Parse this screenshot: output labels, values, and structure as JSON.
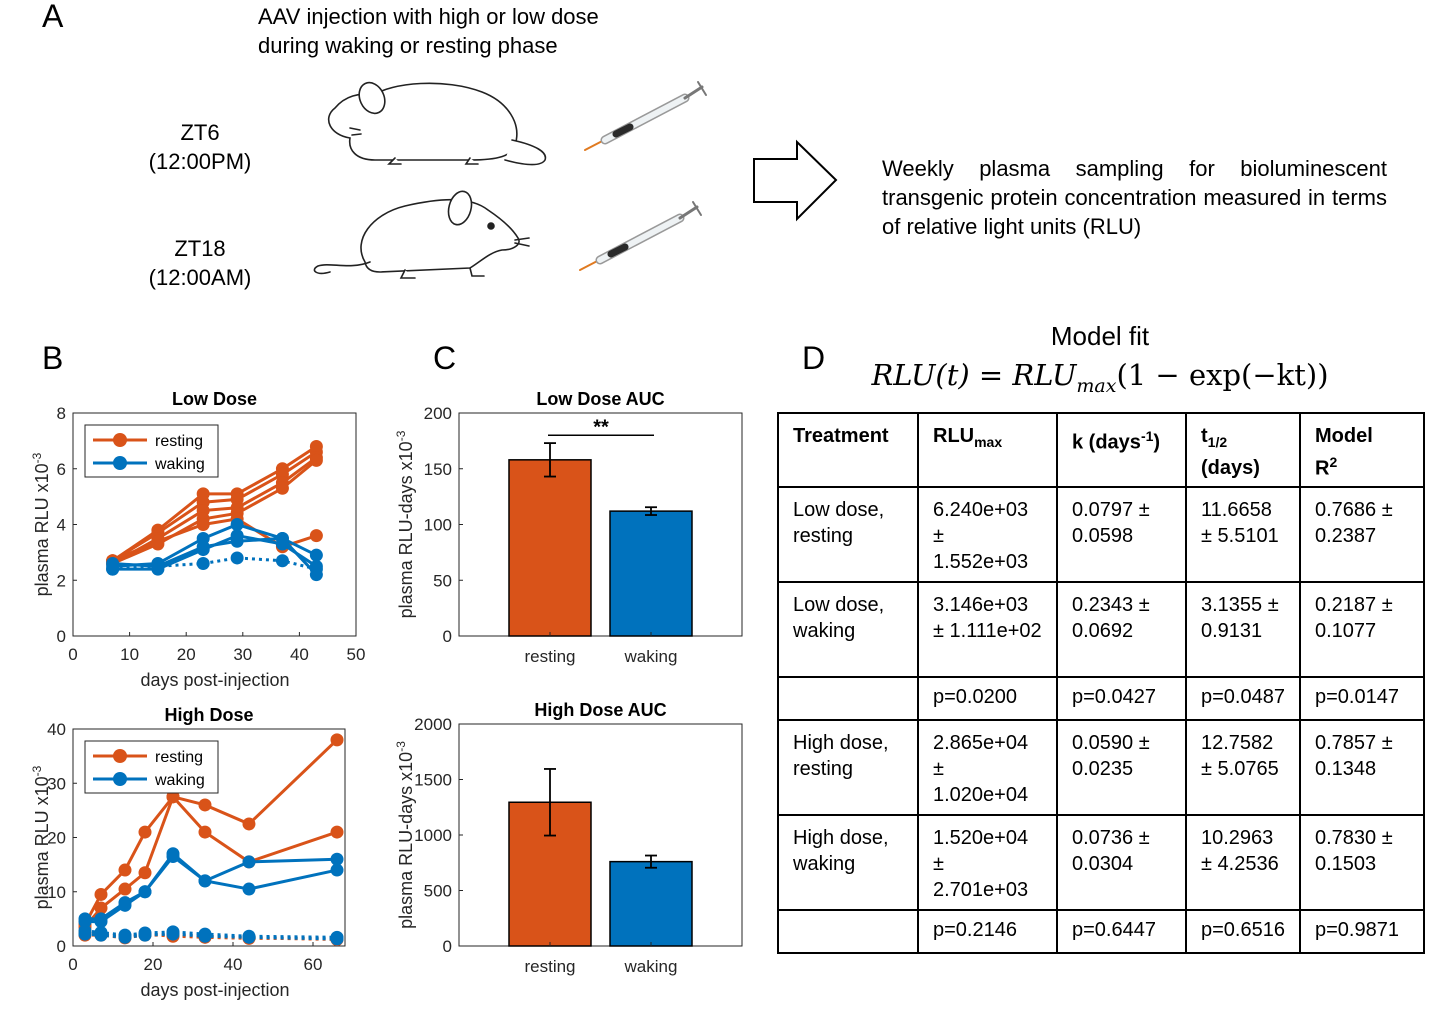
{
  "panel_labels": {
    "a": "A",
    "b": "B",
    "c": "C",
    "d": "D"
  },
  "panel_a": {
    "caption_line1": "AAV injection with high or low dose",
    "caption_line2": "during waking or resting phase",
    "zt6": "ZT6",
    "zt6_time": "(12:00PM)",
    "zt18": "ZT18",
    "zt18_time": "(12:00AM)",
    "weekly_text": "Weekly plasma sampling for bioluminescent transgenic protein concentration measured in terms of relative light units (RLU)",
    "icons": [
      "sleeping-mouse-icon",
      "awake-mouse-icon",
      "syringe-icon",
      "arrow-right-icon"
    ]
  },
  "colors": {
    "resting": "#D95319",
    "waking": "#0072BD",
    "axis": "#262626"
  },
  "model": {
    "title": "Model fit",
    "eq_lhs": "RLU(t) = RLU",
    "eq_sub": "max",
    "eq_rest": "(1 − exp(−kt))"
  },
  "table": {
    "headers": {
      "treatment": "Treatment",
      "rlu": "RLU",
      "rlu_sub": "max",
      "k": "k (days",
      "k_sup": "-1",
      "k_close": ")",
      "t": "t",
      "t_sub": "1/2",
      "t_days": "(days)",
      "model": "Model",
      "r": "R",
      "r_sup": "2"
    },
    "rows": [
      {
        "treatment": "Low dose, resting",
        "rlu": "6.240e+03 ± 1.552e+03",
        "k": "0.0797 ± 0.0598",
        "t": "11.6658 ± 5.5101",
        "r2": "0.7686 ± 0.2387"
      },
      {
        "treatment": "Low dose, waking",
        "rlu": "3.146e+03 ± 1.111e+02",
        "k": "0.2343 ± 0.0692",
        "t": "3.1355 ± 0.9131",
        "r2": "0.2187 ± 0.1077"
      },
      {
        "treatment": "",
        "rlu": "p=0.0200",
        "k": "p=0.0427",
        "t": "p=0.0487",
        "r2": "p=0.0147"
      },
      {
        "treatment": "High dose, resting",
        "rlu": "2.865e+04 ± 1.020e+04",
        "k": "0.0590 ± 0.0235",
        "t": "12.7582 ± 5.0765",
        "r2": "0.7857 ± 0.1348"
      },
      {
        "treatment": "High dose, waking",
        "rlu": "1.520e+04 ± 2.701e+03",
        "k": "0.0736 ± 0.0304",
        "t": "10.2963 ± 4.2536",
        "r2": "0.7830 ± 0.1503"
      },
      {
        "treatment": "",
        "rlu": "p=0.2146",
        "k": "p=0.6447",
        "t": "p=0.6516",
        "r2": "p=0.9871"
      }
    ]
  },
  "chart_data": [
    {
      "id": "b_low",
      "type": "line",
      "title": "Low Dose",
      "xlabel": "days post-injection",
      "ylabel": "plasma RLU x10",
      "ylabel_exp": "-3",
      "xlim": [
        0,
        50
      ],
      "ylim": [
        0,
        8
      ],
      "xticks": [
        0,
        10,
        20,
        30,
        40,
        50
      ],
      "yticks": [
        0,
        2,
        4,
        6,
        8
      ],
      "legend": [
        "resting",
        "waking"
      ],
      "legend_position": "top-left",
      "series": [
        {
          "name": "resting",
          "group": "resting",
          "dashed": false,
          "x": [
            7,
            15,
            23,
            29,
            37,
            43
          ],
          "y": [
            2.7,
            3.8,
            5.1,
            5.1,
            6.0,
            6.8
          ]
        },
        {
          "name": "resting",
          "group": "resting",
          "dashed": false,
          "x": [
            7,
            15,
            23,
            29,
            37,
            43
          ],
          "y": [
            2.7,
            3.7,
            4.8,
            4.9,
            5.8,
            6.6
          ]
        },
        {
          "name": "resting",
          "group": "resting",
          "dashed": false,
          "x": [
            7,
            15,
            23,
            29,
            37,
            43
          ],
          "y": [
            2.6,
            3.5,
            4.5,
            4.6,
            5.5,
            6.4
          ]
        },
        {
          "name": "resting",
          "group": "resting",
          "dashed": false,
          "x": [
            7,
            15,
            23,
            29,
            37,
            43
          ],
          "y": [
            2.6,
            3.3,
            4.2,
            4.4,
            5.3,
            6.3
          ]
        },
        {
          "name": "resting",
          "group": "resting",
          "dashed": false,
          "x": [
            7,
            15,
            23,
            29,
            37,
            43
          ],
          "y": [
            2.7,
            3.4,
            4.0,
            4.2,
            3.2,
            3.6
          ]
        },
        {
          "name": "waking",
          "group": "waking",
          "dashed": false,
          "x": [
            7,
            15,
            23,
            29,
            37,
            43
          ],
          "y": [
            2.5,
            2.6,
            3.5,
            4.0,
            3.5,
            2.9
          ]
        },
        {
          "name": "waking",
          "group": "waking",
          "dashed": false,
          "x": [
            7,
            15,
            23,
            29,
            37,
            43
          ],
          "y": [
            2.4,
            2.4,
            3.1,
            3.6,
            3.3,
            2.5
          ]
        },
        {
          "name": "waking",
          "group": "waking",
          "dashed": false,
          "x": [
            7,
            15,
            23,
            29,
            37,
            43
          ],
          "y": [
            2.6,
            2.5,
            3.2,
            3.4,
            3.5,
            2.2
          ]
        },
        {
          "name": "waking",
          "group": "waking",
          "dashed": true,
          "x": [
            7,
            15,
            23,
            29,
            37,
            43
          ],
          "y": [
            2.4,
            2.5,
            2.6,
            2.8,
            2.7,
            2.4
          ]
        }
      ]
    },
    {
      "id": "b_high",
      "type": "line",
      "title": "High Dose",
      "xlabel": "days post-injection",
      "ylabel": "plasma RLU x10",
      "ylabel_exp": "-3",
      "xlim": [
        0,
        70
      ],
      "ylim": [
        0,
        40
      ],
      "xticks": [
        0,
        20,
        40,
        60
      ],
      "yticks": [
        0,
        10,
        20,
        30,
        40
      ],
      "legend": [
        "resting",
        "waking"
      ],
      "legend_position": "top-left",
      "series": [
        {
          "name": "resting",
          "group": "resting",
          "dashed": false,
          "x": [
            3,
            7,
            13,
            18,
            25,
            33,
            44,
            66
          ],
          "y": [
            4,
            9.5,
            14,
            21,
            27.5,
            26,
            22.5,
            38
          ]
        },
        {
          "name": "resting",
          "group": "resting",
          "dashed": false,
          "x": [
            3,
            7,
            13,
            18,
            25,
            33,
            44,
            66
          ],
          "y": [
            3.5,
            7,
            10.5,
            13.5,
            27.5,
            21,
            15.5,
            21
          ]
        },
        {
          "name": "waking",
          "group": "waking",
          "dashed": false,
          "x": [
            3,
            7,
            13,
            18,
            25,
            33,
            44,
            66
          ],
          "y": [
            5,
            5,
            8,
            10,
            17,
            12,
            15.5,
            16
          ]
        },
        {
          "name": "waking",
          "group": "waking",
          "dashed": false,
          "x": [
            3,
            7,
            13,
            18,
            25,
            33,
            44,
            66
          ],
          "y": [
            4.5,
            4.5,
            7.5,
            10,
            16.5,
            12,
            10.5,
            14
          ]
        },
        {
          "name": "resting",
          "group": "resting",
          "dashed": true,
          "x": [
            3,
            7,
            13,
            18,
            25,
            33,
            44,
            66
          ],
          "y": [
            2,
            2,
            1.5,
            2,
            2,
            1.8,
            1.5,
            1.2
          ]
        },
        {
          "name": "resting",
          "group": "resting",
          "dashed": true,
          "x": [
            3,
            7,
            13,
            18,
            25,
            33,
            44,
            66
          ],
          "y": [
            2.5,
            2.2,
            1.8,
            2.2,
            1.8,
            1.6,
            1.4,
            1.5
          ]
        },
        {
          "name": "waking",
          "group": "waking",
          "dashed": true,
          "x": [
            3,
            7,
            13,
            18,
            25,
            33,
            44,
            66
          ],
          "y": [
            2.8,
            2.5,
            2,
            2.4,
            2.6,
            2.2,
            1.8,
            1.6
          ]
        },
        {
          "name": "waking",
          "group": "waking",
          "dashed": true,
          "x": [
            3,
            7,
            13,
            18,
            25,
            33,
            44,
            66
          ],
          "y": [
            2.2,
            2,
            1.6,
            2.0,
            2.2,
            1.8,
            1.6,
            1.3
          ]
        }
      ]
    },
    {
      "id": "c_low",
      "type": "bar",
      "title": "Low Dose AUC",
      "ylabel": "plasma RLU-days x10",
      "ylabel_exp": "-3",
      "categories": [
        "resting",
        "waking"
      ],
      "values": [
        158,
        112
      ],
      "errors": [
        15,
        3.5
      ],
      "ylim": [
        0,
        200
      ],
      "yticks": [
        0,
        50,
        100,
        150,
        200
      ],
      "significance": "**"
    },
    {
      "id": "c_high",
      "type": "bar",
      "title": "High Dose AUC",
      "ylabel": "plasma RLU-days x10",
      "ylabel_exp": "-3",
      "categories": [
        "resting",
        "waking"
      ],
      "values": [
        1295,
        760
      ],
      "errors": [
        300,
        55
      ],
      "ylim": [
        0,
        2000
      ],
      "yticks": [
        0,
        500,
        1000,
        1500,
        2000
      ]
    }
  ]
}
